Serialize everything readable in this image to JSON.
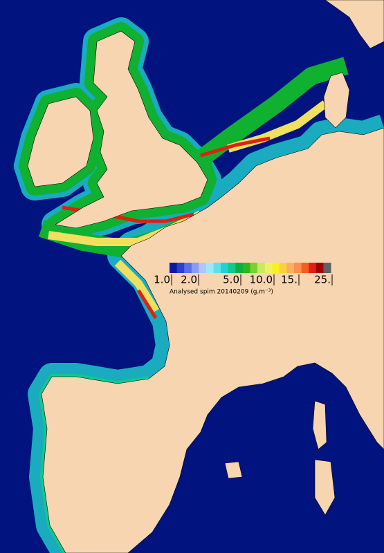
{
  "legend": {
    "ticks": [
      {
        "value": 1,
        "label": "1.0"
      },
      {
        "value": 2,
        "label": "2.0"
      },
      {
        "value": 5,
        "label": "5.0"
      },
      {
        "value": 10,
        "label": "10.0"
      },
      {
        "value": 15,
        "label": "15."
      },
      {
        "value": 25,
        "label": "25."
      }
    ],
    "colors": [
      "#0a1aa0",
      "#2d3fd0",
      "#5a6ee6",
      "#8a9cf2",
      "#b4c4f8",
      "#9fe8f5",
      "#5fe0e8",
      "#20d2d0",
      "#10c890",
      "#08b040",
      "#2ab820",
      "#7ad030",
      "#c8e860",
      "#f0f068",
      "#f8f020",
      "#f8d040",
      "#f8b060",
      "#f89050",
      "#f06020",
      "#e02010",
      "#a00000",
      "#606060"
    ],
    "caption": "Analysed spim 20140209 (g.m⁻³)"
  }
}
